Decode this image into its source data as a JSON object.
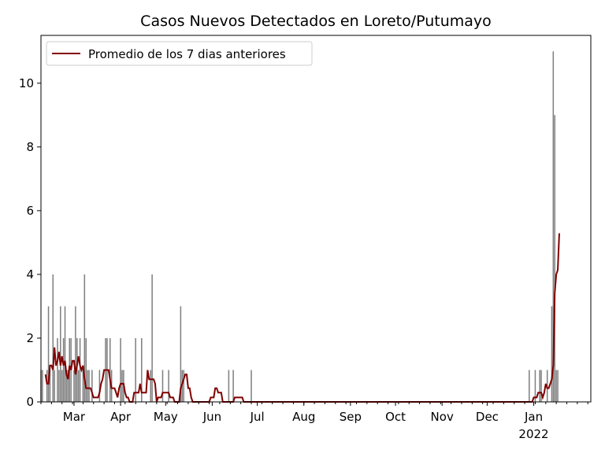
{
  "chart_data": {
    "type": "bar",
    "title": "Casos Nuevos Detectados en Loreto/Putumayo",
    "xlabel": "",
    "ylabel": "",
    "x_range": [
      "2021-02-07",
      "2022-02-08"
    ],
    "ylim": [
      0,
      11.5
    ],
    "y_ticks": [
      0,
      2,
      4,
      6,
      8,
      10
    ],
    "x_ticks": [
      {
        "date": "2021-03-01",
        "label": "Mar",
        "sublabel": ""
      },
      {
        "date": "2021-04-01",
        "label": "Apr",
        "sublabel": ""
      },
      {
        "date": "2021-05-01",
        "label": "May",
        "sublabel": ""
      },
      {
        "date": "2021-06-01",
        "label": "Jun",
        "sublabel": ""
      },
      {
        "date": "2021-07-01",
        "label": "Jul",
        "sublabel": ""
      },
      {
        "date": "2021-08-01",
        "label": "Aug",
        "sublabel": ""
      },
      {
        "date": "2021-09-01",
        "label": "Sep",
        "sublabel": ""
      },
      {
        "date": "2021-10-01",
        "label": "Oct",
        "sublabel": ""
      },
      {
        "date": "2021-11-01",
        "label": "Nov",
        "sublabel": ""
      },
      {
        "date": "2021-12-01",
        "label": "Dec",
        "sublabel": ""
      },
      {
        "date": "2022-01-01",
        "label": "Jan",
        "sublabel": "2022"
      }
    ],
    "grid": false,
    "legend": {
      "placement": "top-left",
      "entries": [
        "Promedio de los 7 dias anteriores"
      ]
    },
    "colors": {
      "bars": "#808080",
      "line": "#800000"
    },
    "series": [
      {
        "kind": "bar",
        "start_date": "2021-02-07",
        "values": [
          1,
          1,
          0,
          0,
          1,
          3,
          1,
          0,
          4,
          1,
          0,
          2,
          1,
          3,
          1,
          2,
          3,
          1,
          1,
          2,
          2,
          0,
          1,
          3,
          2,
          1,
          2,
          0,
          1,
          4,
          2,
          1,
          1,
          0,
          1,
          0,
          0,
          0,
          0,
          1,
          0,
          0,
          0,
          2,
          2,
          0,
          2,
          1,
          0,
          0,
          0,
          0,
          0,
          2,
          1,
          1,
          0,
          0,
          0,
          0,
          0,
          0,
          0,
          2,
          0,
          0,
          0,
          2,
          0,
          0,
          0,
          0,
          0,
          1,
          4,
          0,
          0,
          0,
          0,
          0,
          0,
          1,
          0,
          0,
          0,
          1,
          0,
          0,
          0,
          0,
          0,
          0,
          0,
          3,
          1,
          1,
          0,
          0,
          0,
          0,
          0,
          0,
          0,
          0,
          0,
          0,
          0,
          0,
          0,
          0,
          0,
          0,
          0,
          0,
          0,
          0,
          0,
          0,
          0,
          0,
          0,
          0,
          0,
          0,
          0,
          1,
          0,
          0,
          1,
          0,
          0,
          0,
          0,
          0,
          0,
          0,
          0,
          0,
          0,
          0,
          1,
          0,
          0,
          0,
          0,
          0,
          0,
          0,
          0,
          0,
          0,
          0,
          0,
          0,
          0,
          0,
          0,
          0,
          0,
          0,
          0,
          0,
          0,
          0,
          0,
          0,
          0,
          0,
          0,
          0,
          0,
          0,
          0,
          0,
          0,
          0,
          0,
          0,
          0,
          0,
          0,
          0,
          0,
          0,
          0,
          0,
          0,
          0,
          0,
          0,
          0,
          0,
          0,
          0,
          0,
          0,
          0,
          0,
          0,
          0,
          0,
          0,
          0,
          0,
          0,
          0,
          0,
          0,
          0,
          0,
          0,
          0,
          0,
          0,
          0,
          0,
          0,
          0,
          0,
          0,
          0,
          0,
          0,
          0,
          0,
          0,
          0,
          0,
          0,
          0,
          0,
          0,
          0,
          0,
          0,
          0,
          0,
          0,
          0,
          0,
          0,
          0,
          0,
          0,
          0,
          0,
          0,
          0,
          0,
          0,
          0,
          0,
          0,
          0,
          0,
          0,
          0,
          0,
          0,
          0,
          0,
          0,
          0,
          0,
          0,
          0,
          0,
          0,
          0,
          0,
          0,
          0,
          0,
          0,
          0,
          0,
          0,
          0,
          0,
          0,
          0,
          0,
          0,
          0,
          0,
          0,
          0,
          0,
          0,
          0,
          0,
          0,
          0,
          0,
          0,
          0,
          0,
          0,
          0,
          0,
          0,
          0,
          0,
          0,
          0,
          0,
          0,
          0,
          0,
          0,
          0,
          0,
          0,
          0,
          0,
          0,
          0,
          0,
          0,
          0,
          0,
          0,
          0,
          0,
          0,
          1,
          0,
          0,
          0,
          1,
          0,
          0,
          1,
          1,
          0,
          0,
          0,
          1,
          0,
          0,
          3,
          11,
          9,
          1,
          1
        ]
      },
      {
        "kind": "line",
        "name": "Promedio de los 7 dias anteriores",
        "start_date": "2021-02-10",
        "values": [
          0.86,
          0.57,
          0.57,
          1.14,
          1.14,
          1.0,
          1.71,
          1.14,
          1.29,
          1.57,
          1.14,
          1.43,
          1.14,
          1.29,
          0.86,
          0.71,
          1.14,
          1.0,
          1.29,
          1.29,
          0.86,
          1.14,
          1.43,
          1.14,
          1.0,
          1.14,
          0.71,
          0.43,
          0.43,
          0.43,
          0.43,
          0.29,
          0.14,
          0.14,
          0.14,
          0.14,
          0.29,
          0.57,
          0.71,
          1.0,
          1.0,
          1.0,
          1.0,
          0.71,
          0.43,
          0.43,
          0.43,
          0.29,
          0.14,
          0.43,
          0.57,
          0.57,
          0.57,
          0.29,
          0.14,
          0.14,
          0.0,
          0.0,
          0.0,
          0.29,
          0.29,
          0.29,
          0.29,
          0.57,
          0.29,
          0.29,
          0.29,
          0.29,
          1.0,
          0.71,
          0.71,
          0.71,
          0.71,
          0.57,
          0.0,
          0.14,
          0.14,
          0.14,
          0.29,
          0.29,
          0.29,
          0.29,
          0.29,
          0.14,
          0.14,
          0.14,
          0.0,
          0.0,
          0.0,
          0.0,
          0.43,
          0.57,
          0.71,
          0.86,
          0.86,
          0.43,
          0.43,
          0.14,
          0.0,
          0.0,
          0.0,
          0.0,
          0.0,
          0.0,
          0.0,
          0.0,
          0.0,
          0.0,
          0.0,
          0.0,
          0.14,
          0.14,
          0.14,
          0.43,
          0.43,
          0.29,
          0.29,
          0.29,
          0.0,
          0.0,
          0.0,
          0.0,
          0.0,
          0.0,
          0.0,
          0.0,
          0.14,
          0.14,
          0.14,
          0.14,
          0.14,
          0.14,
          0.0,
          0.0,
          0.0,
          0.0,
          0.0,
          0.0,
          0.0,
          0.0,
          0.0,
          0.0,
          0.0,
          0.0,
          0.0,
          0.0,
          0.0,
          0.0,
          0.0,
          0.0,
          0.0,
          0.0,
          0.0,
          0.0,
          0.0,
          0.0,
          0.0,
          0.0,
          0.0,
          0.0,
          0.0,
          0.0,
          0.0,
          0.0,
          0.0,
          0.0,
          0.0,
          0.0,
          0.0,
          0.0,
          0.0,
          0.0,
          0.0,
          0.0,
          0.0,
          0.0,
          0.0,
          0.0,
          0.0,
          0.0,
          0.0,
          0.0,
          0.0,
          0.0,
          0.0,
          0.0,
          0.0,
          0.0,
          0.0,
          0.0,
          0.0,
          0.0,
          0.0,
          0.0,
          0.0,
          0.0,
          0.0,
          0.0,
          0.0,
          0.0,
          0.0,
          0.0,
          0.0,
          0.0,
          0.0,
          0.0,
          0.0,
          0.0,
          0.0,
          0.0,
          0.0,
          0.0,
          0.0,
          0.0,
          0.0,
          0.0,
          0.0,
          0.0,
          0.0,
          0.0,
          0.0,
          0.0,
          0.0,
          0.0,
          0.0,
          0.0,
          0.0,
          0.0,
          0.0,
          0.0,
          0.0,
          0.0,
          0.0,
          0.0,
          0.0,
          0.0,
          0.0,
          0.0,
          0.0,
          0.0,
          0.0,
          0.0,
          0.0,
          0.0,
          0.0,
          0.0,
          0.0,
          0.0,
          0.0,
          0.0,
          0.0,
          0.0,
          0.0,
          0.0,
          0.0,
          0.0,
          0.0,
          0.0,
          0.0,
          0.0,
          0.0,
          0.0,
          0.0,
          0.0,
          0.0,
          0.0,
          0.0,
          0.0,
          0.0,
          0.0,
          0.0,
          0.0,
          0.0,
          0.0,
          0.0,
          0.0,
          0.0,
          0.0,
          0.0,
          0.0,
          0.0,
          0.0,
          0.0,
          0.0,
          0.0,
          0.0,
          0.0,
          0.0,
          0.0,
          0.0,
          0.0,
          0.0,
          0.0,
          0.0,
          0.0,
          0.0,
          0.0,
          0.0,
          0.0,
          0.0,
          0.0,
          0.0,
          0.0,
          0.0,
          0.0,
          0.0,
          0.0,
          0.0,
          0.0,
          0.0,
          0.0,
          0.0,
          0.0,
          0.0,
          0.0,
          0.0,
          0.0,
          0.0,
          0.0,
          0.0,
          0.0,
          0.0,
          0.0,
          0.0,
          0.0,
          0.14,
          0.14,
          0.14,
          0.29,
          0.29,
          0.29,
          0.14,
          0.29,
          0.57,
          0.43,
          0.43,
          0.57,
          0.71,
          1.14,
          3.43,
          4.0,
          4.14,
          5.29
        ]
      }
    ]
  }
}
